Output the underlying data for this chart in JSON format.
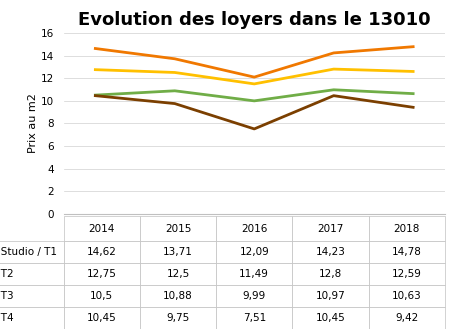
{
  "title": "Evolution des loyers dans le 13010",
  "ylabel": "Prix au m2",
  "years": [
    2014,
    2015,
    2016,
    2017,
    2018
  ],
  "series": [
    {
      "label": "Studio / T1",
      "values": [
        14.62,
        13.71,
        12.09,
        14.23,
        14.78
      ],
      "color": "#F07800"
    },
    {
      "label": "T2",
      "values": [
        12.75,
        12.5,
        11.49,
        12.8,
        12.59
      ],
      "color": "#FFC000"
    },
    {
      "label": "T3",
      "values": [
        10.5,
        10.88,
        9.99,
        10.97,
        10.63
      ],
      "color": "#70AD47"
    },
    {
      "label": "T4",
      "values": [
        10.45,
        9.75,
        7.51,
        10.45,
        9.42
      ],
      "color": "#7B3F00"
    }
  ],
  "ylim": [
    0,
    16
  ],
  "yticks": [
    0,
    2,
    4,
    6,
    8,
    10,
    12,
    14,
    16
  ],
  "grid_color": "#D0D0D0",
  "background_color": "#FFFFFF",
  "title_fontsize": 13,
  "axis_label_fontsize": 8,
  "table_fontsize": 7.5,
  "cell_values_formatted": [
    [
      "14,62",
      "13,71",
      "12,09",
      "14,23",
      "14,78"
    ],
    [
      "12,75",
      "12,5",
      "11,49",
      "12,8",
      "12,59"
    ],
    [
      "10,5",
      "10,88",
      "9,99",
      "10,97",
      "10,63"
    ],
    [
      "10,45",
      "9,75",
      "7,51",
      "10,45",
      "9,42"
    ]
  ]
}
